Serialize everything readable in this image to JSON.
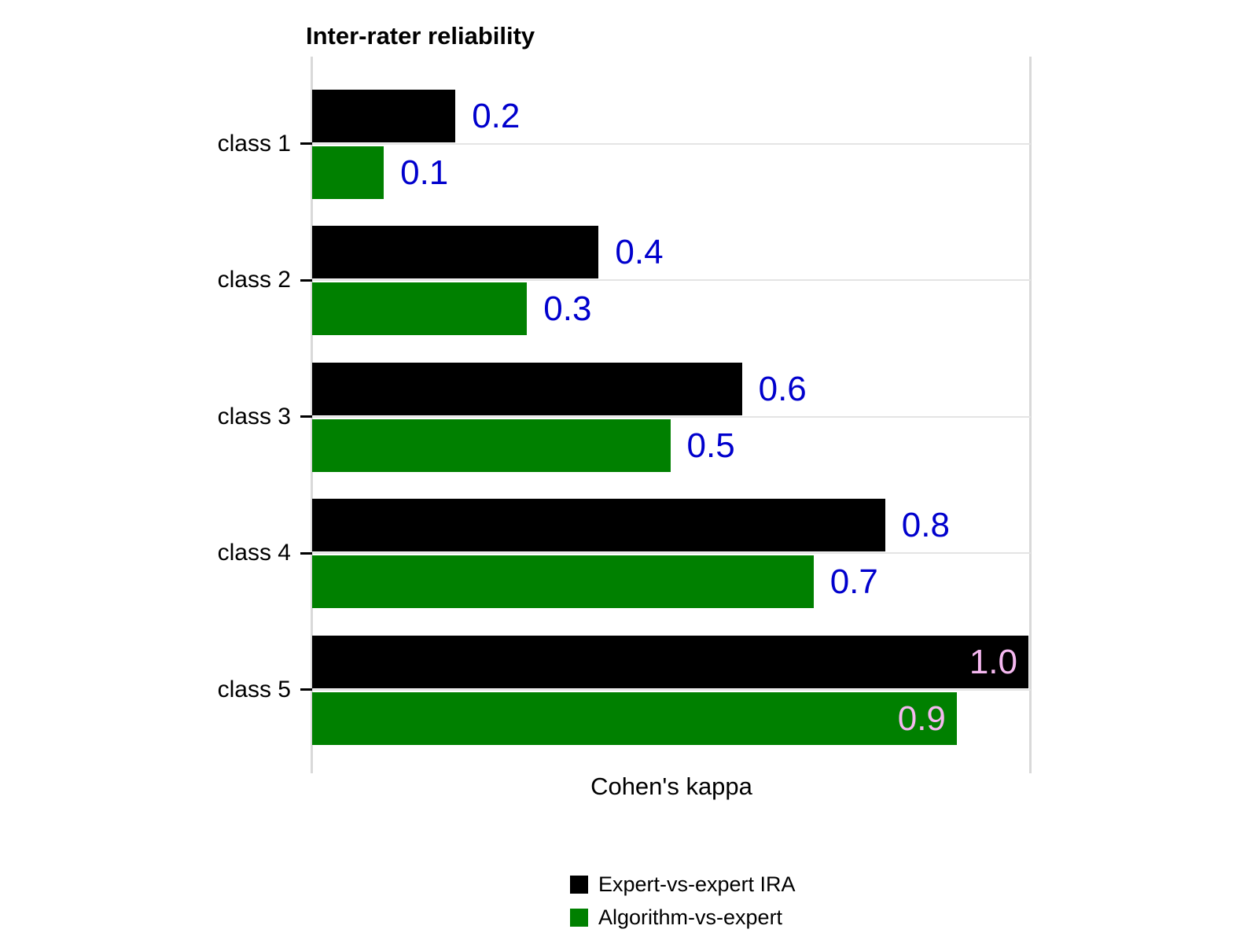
{
  "chart_data": {
    "type": "bar",
    "orientation": "horizontal",
    "title": "Inter-rater reliability",
    "xlabel": "Cohen's kappa",
    "ylabel": "",
    "categories": [
      "class 1",
      "class 2",
      "class 3",
      "class 4",
      "class 5"
    ],
    "series": [
      {
        "name": "Expert-vs-expert IRA",
        "color": "#000000",
        "values": [
          0.2,
          0.4,
          0.6,
          0.8,
          1.0
        ]
      },
      {
        "name": "Algorithm-vs-expert",
        "color": "#008000",
        "values": [
          0.1,
          0.3,
          0.5,
          0.7,
          0.9
        ]
      }
    ],
    "xlim": [
      0,
      1.0
    ],
    "grid": "category-gridlines-horizontal",
    "legend_position": "bottom-center",
    "value_labels": {
      "shown": [
        "0.2",
        "0.1",
        "0.4",
        "0.3",
        "0.6",
        "0.5",
        "0.8",
        "0.7",
        "1.0",
        "0.9"
      ],
      "outside_color": "#0000CD",
      "inside_color": "#F5B8F0",
      "inside_threshold": 0.9,
      "format": "one-decimal"
    },
    "colors": {
      "axis_line": "#d9d9d9",
      "gridline": "#e4e4e4",
      "tick": "#000000",
      "background": "#ffffff"
    }
  }
}
